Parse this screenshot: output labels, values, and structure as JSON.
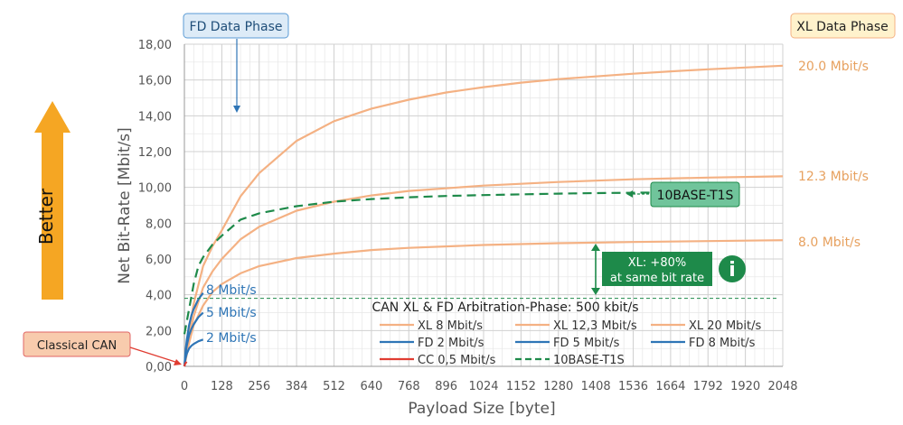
{
  "chart_data": {
    "type": "line",
    "title": "",
    "xlabel": "Payload Size [byte]",
    "ylabel": "Net Bit-Rate [Mbit/s]",
    "xlim": [
      0,
      2048
    ],
    "ylim": [
      0,
      18
    ],
    "x_ticks": [
      "0",
      "128",
      "256",
      "384",
      "512",
      "640",
      "768",
      "896",
      "1024",
      "1152",
      "1280",
      "1408",
      "1536",
      "1664",
      "1792",
      "1920",
      "2048"
    ],
    "y_ticks": [
      "0,00",
      "2,00",
      "4,00",
      "6,00",
      "8,00",
      "10,00",
      "12,00",
      "14,00",
      "16,00",
      "18,00"
    ],
    "grid": true,
    "legend_title": "CAN XL & FD Arbitration-Phase: 500 kbit/s",
    "legend_position": "bottom-center",
    "series": [
      {
        "name": "XL 8 Mbit/s",
        "color": "#F4B183",
        "dash": false,
        "x": [
          0,
          16,
          32,
          64,
          96,
          128,
          192,
          256,
          384,
          512,
          640,
          768,
          1024,
          1280,
          1536,
          1792,
          2048
        ],
        "y": [
          0,
          1.3,
          2.3,
          3.4,
          4.15,
          4.6,
          5.2,
          5.6,
          6.05,
          6.3,
          6.5,
          6.62,
          6.78,
          6.88,
          6.95,
          7.0,
          7.05
        ]
      },
      {
        "name": "XL 12,3 Mbit/s",
        "color": "#F4B183",
        "dash": false,
        "x": [
          0,
          16,
          32,
          64,
          96,
          128,
          192,
          256,
          384,
          512,
          640,
          768,
          1024,
          1280,
          1536,
          1792,
          2048
        ],
        "y": [
          0,
          1.6,
          2.8,
          4.4,
          5.3,
          6.0,
          7.1,
          7.8,
          8.7,
          9.2,
          9.55,
          9.8,
          10.1,
          10.3,
          10.45,
          10.55,
          10.62
        ]
      },
      {
        "name": "XL 20 Mbit/s",
        "color": "#F4B183",
        "dash": false,
        "x": [
          0,
          16,
          32,
          64,
          96,
          128,
          192,
          256,
          384,
          512,
          640,
          768,
          896,
          1024,
          1152,
          1280,
          1408,
          1536,
          1664,
          1792,
          1920,
          2048
        ],
        "y": [
          0,
          2.0,
          3.5,
          5.6,
          6.7,
          7.6,
          9.5,
          10.8,
          12.6,
          13.7,
          14.4,
          14.9,
          15.3,
          15.6,
          15.85,
          16.05,
          16.2,
          16.35,
          16.48,
          16.6,
          16.7,
          16.8
        ]
      },
      {
        "name": "FD 2 Mbit/s",
        "color": "#2E75B6",
        "dash": false,
        "x": [
          0,
          4,
          8,
          16,
          24,
          32,
          48,
          64
        ],
        "y": [
          0,
          0.45,
          0.7,
          1.0,
          1.15,
          1.25,
          1.4,
          1.5
        ]
      },
      {
        "name": "FD 5 Mbit/s",
        "color": "#2E75B6",
        "dash": false,
        "x": [
          0,
          4,
          8,
          16,
          24,
          32,
          48,
          64
        ],
        "y": [
          0,
          0.7,
          1.15,
          1.75,
          2.1,
          2.35,
          2.75,
          3.0
        ]
      },
      {
        "name": "FD 8 Mbit/s",
        "color": "#2E75B6",
        "dash": false,
        "x": [
          0,
          4,
          8,
          16,
          24,
          32,
          48,
          64
        ],
        "y": [
          0,
          0.85,
          1.45,
          2.3,
          2.85,
          3.2,
          3.75,
          4.1
        ]
      },
      {
        "name": "CC 0,5 Mbit/s",
        "color": "#E03C31",
        "dash": false,
        "x": [
          0,
          2,
          4,
          8
        ],
        "y": [
          0,
          0.12,
          0.18,
          0.25
        ]
      },
      {
        "name": "10BASE-T1S",
        "color": "#1E8A4A",
        "dash": true,
        "x": [
          0,
          16,
          32,
          48,
          64,
          96,
          128,
          192,
          256,
          384,
          512,
          640,
          768,
          896,
          1024,
          1152,
          1280,
          1408,
          1536,
          1664,
          1760
        ],
        "y": [
          1.8,
          3.2,
          4.6,
          5.6,
          6.1,
          6.8,
          7.3,
          8.2,
          8.55,
          8.95,
          9.2,
          9.35,
          9.45,
          9.52,
          9.57,
          9.61,
          9.65,
          9.68,
          9.7,
          9.72,
          9.74
        ]
      }
    ],
    "annotations": {
      "fd_data_phase": "FD Data Phase",
      "xl_data_phase": "XL Data Phase",
      "better": "Better",
      "classical_can": "Classical CAN",
      "t1s_label": "10BASE-T1S",
      "xl_gain_line1": "XL: +80%",
      "xl_gain_line2": "at same bit rate",
      "info_glyph": "i",
      "xl_20": "20.0 Mbit/s",
      "xl_12": "12.3 Mbit/s",
      "xl_8": "8.0 Mbit/s",
      "fd_8": "8 Mbit/s",
      "fd_5": "5 Mbit/s",
      "fd_2": "2 Mbit/s",
      "reference_level": 3.8
    }
  }
}
